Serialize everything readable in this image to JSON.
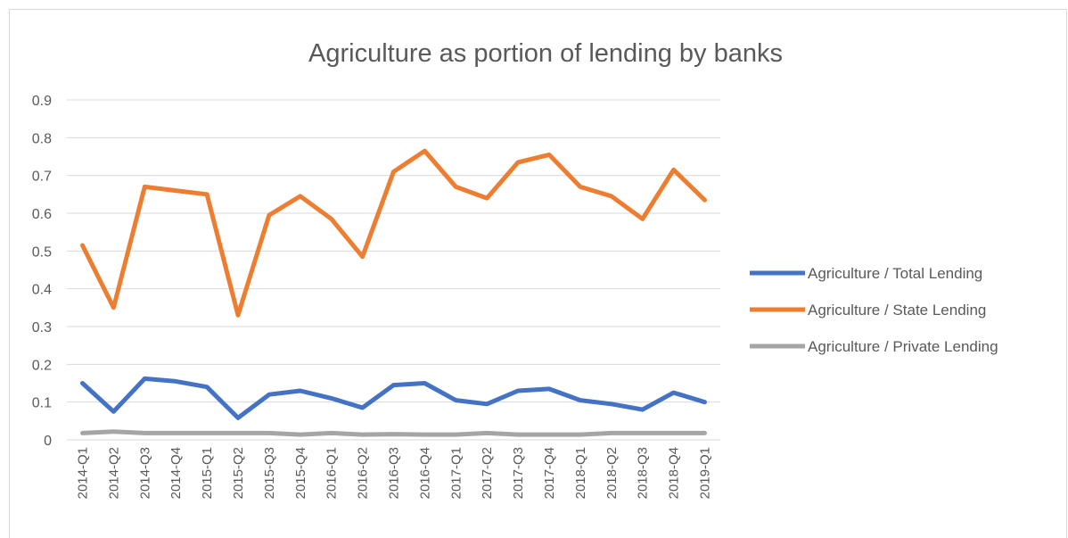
{
  "chart_data": {
    "type": "line",
    "title": "Agriculture as portion of lending by banks",
    "xlabel": "",
    "ylabel": "",
    "ylim": [
      0,
      0.9
    ],
    "yticks": [
      "0",
      "0.1",
      "0.2",
      "0.3",
      "0.4",
      "0.5",
      "0.6",
      "0.7",
      "0.8",
      "0.9"
    ],
    "grid": true,
    "legend_position": "right",
    "categories": [
      "2014-Q1",
      "2014-Q2",
      "2014-Q3",
      "2014-Q4",
      "2015-Q1",
      "2015-Q2",
      "2015-Q3",
      "2015-Q4",
      "2016-Q1",
      "2016-Q2",
      "2016-Q3",
      "2016-Q4",
      "2017-Q1",
      "2017-Q2",
      "2017-Q3",
      "2017-Q4",
      "2018-Q1",
      "2018-Q2",
      "2018-Q3",
      "2018-Q4",
      "2019-Q1"
    ],
    "series": [
      {
        "name": "Agriculture / Total Lending",
        "color": "#4472c4",
        "values": [
          0.15,
          0.075,
          0.162,
          0.155,
          0.14,
          0.058,
          0.12,
          0.13,
          0.11,
          0.085,
          0.145,
          0.15,
          0.105,
          0.095,
          0.13,
          0.135,
          0.105,
          0.095,
          0.08,
          0.125,
          0.1
        ]
      },
      {
        "name": "Agriculture / State Lending",
        "color": "#ed7d31",
        "values": [
          0.515,
          0.35,
          0.67,
          0.66,
          0.65,
          0.33,
          0.595,
          0.645,
          0.585,
          0.485,
          0.71,
          0.765,
          0.67,
          0.64,
          0.735,
          0.755,
          0.67,
          0.645,
          0.585,
          0.715,
          0.635
        ]
      },
      {
        "name": "Agriculture / Private Lending",
        "color": "#a5a5a5",
        "values": [
          0.018,
          0.022,
          0.018,
          0.018,
          0.018,
          0.018,
          0.018,
          0.014,
          0.018,
          0.014,
          0.015,
          0.014,
          0.014,
          0.018,
          0.014,
          0.014,
          0.014,
          0.018,
          0.018,
          0.018,
          0.018
        ]
      }
    ]
  }
}
